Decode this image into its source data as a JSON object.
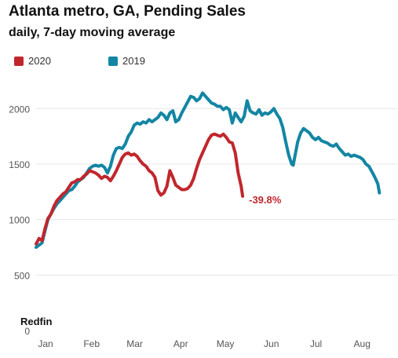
{
  "chart_data": {
    "type": "line",
    "title": "Atlanta metro, GA, Pending Sales",
    "subtitle": "daily, 7-day moving average",
    "xlabel": "",
    "ylabel": "",
    "ylim": [
      0,
      2200
    ],
    "yticks": [
      0,
      500,
      1000,
      1500,
      2000
    ],
    "xticks": [
      "Jan",
      "Feb",
      "Mar",
      "Apr",
      "May",
      "Jun",
      "Jul",
      "Aug"
    ],
    "xtick_days": [
      0,
      31,
      60,
      91,
      121,
      152,
      182,
      213
    ],
    "xlim": [
      0,
      243
    ],
    "grid": true,
    "legend_position": "top-left",
    "series": [
      {
        "name": "2020",
        "color": "#c0272d",
        "points": [
          [
            0,
            780
          ],
          [
            2,
            830
          ],
          [
            4,
            810
          ],
          [
            6,
            920
          ],
          [
            8,
            1010
          ],
          [
            10,
            1050
          ],
          [
            12,
            1120
          ],
          [
            14,
            1170
          ],
          [
            16,
            1200
          ],
          [
            18,
            1230
          ],
          [
            20,
            1250
          ],
          [
            22,
            1290
          ],
          [
            24,
            1330
          ],
          [
            26,
            1340
          ],
          [
            28,
            1360
          ],
          [
            30,
            1360
          ],
          [
            32,
            1390
          ],
          [
            34,
            1410
          ],
          [
            36,
            1440
          ],
          [
            38,
            1430
          ],
          [
            40,
            1420
          ],
          [
            42,
            1400
          ],
          [
            44,
            1370
          ],
          [
            46,
            1390
          ],
          [
            48,
            1380
          ],
          [
            50,
            1350
          ],
          [
            52,
            1390
          ],
          [
            54,
            1440
          ],
          [
            56,
            1500
          ],
          [
            58,
            1560
          ],
          [
            60,
            1590
          ],
          [
            62,
            1600
          ],
          [
            64,
            1580
          ],
          [
            66,
            1590
          ],
          [
            68,
            1570
          ],
          [
            70,
            1530
          ],
          [
            72,
            1500
          ],
          [
            74,
            1480
          ],
          [
            76,
            1440
          ],
          [
            78,
            1420
          ],
          [
            80,
            1380
          ],
          [
            82,
            1260
          ],
          [
            84,
            1220
          ],
          [
            86,
            1240
          ],
          [
            88,
            1300
          ],
          [
            90,
            1440
          ],
          [
            92,
            1380
          ],
          [
            94,
            1310
          ],
          [
            96,
            1290
          ],
          [
            98,
            1270
          ],
          [
            100,
            1270
          ],
          [
            102,
            1280
          ],
          [
            104,
            1310
          ],
          [
            106,
            1370
          ],
          [
            108,
            1460
          ],
          [
            110,
            1540
          ],
          [
            112,
            1600
          ],
          [
            114,
            1660
          ],
          [
            116,
            1720
          ],
          [
            118,
            1760
          ],
          [
            120,
            1770
          ],
          [
            122,
            1760
          ],
          [
            124,
            1750
          ],
          [
            126,
            1770
          ],
          [
            128,
            1740
          ],
          [
            130,
            1700
          ],
          [
            132,
            1690
          ],
          [
            134,
            1600
          ],
          [
            136,
            1420
          ],
          [
            138,
            1300
          ],
          [
            139,
            1210
          ]
        ],
        "end_label": "-39.8%"
      },
      {
        "name": "2019",
        "color": "#1386a4",
        "points": [
          [
            0,
            750
          ],
          [
            2,
            770
          ],
          [
            4,
            790
          ],
          [
            6,
            900
          ],
          [
            8,
            1000
          ],
          [
            10,
            1050
          ],
          [
            12,
            1100
          ],
          [
            14,
            1140
          ],
          [
            16,
            1170
          ],
          [
            18,
            1200
          ],
          [
            20,
            1230
          ],
          [
            22,
            1260
          ],
          [
            24,
            1270
          ],
          [
            26,
            1300
          ],
          [
            28,
            1340
          ],
          [
            30,
            1360
          ],
          [
            32,
            1380
          ],
          [
            34,
            1420
          ],
          [
            36,
            1460
          ],
          [
            38,
            1480
          ],
          [
            40,
            1490
          ],
          [
            42,
            1480
          ],
          [
            44,
            1490
          ],
          [
            46,
            1470
          ],
          [
            48,
            1420
          ],
          [
            50,
            1480
          ],
          [
            52,
            1580
          ],
          [
            54,
            1640
          ],
          [
            56,
            1650
          ],
          [
            58,
            1640
          ],
          [
            60,
            1680
          ],
          [
            62,
            1750
          ],
          [
            64,
            1790
          ],
          [
            66,
            1850
          ],
          [
            68,
            1870
          ],
          [
            70,
            1860
          ],
          [
            72,
            1880
          ],
          [
            74,
            1870
          ],
          [
            76,
            1900
          ],
          [
            78,
            1880
          ],
          [
            80,
            1900
          ],
          [
            82,
            1920
          ],
          [
            84,
            1960
          ],
          [
            86,
            1940
          ],
          [
            88,
            1900
          ],
          [
            90,
            1960
          ],
          [
            92,
            1980
          ],
          [
            94,
            1880
          ],
          [
            96,
            1900
          ],
          [
            98,
            1960
          ],
          [
            100,
            2010
          ],
          [
            102,
            2060
          ],
          [
            104,
            2110
          ],
          [
            106,
            2100
          ],
          [
            108,
            2070
          ],
          [
            110,
            2090
          ],
          [
            112,
            2140
          ],
          [
            114,
            2110
          ],
          [
            116,
            2080
          ],
          [
            118,
            2050
          ],
          [
            120,
            2040
          ],
          [
            122,
            2020
          ],
          [
            124,
            2020
          ],
          [
            126,
            1990
          ],
          [
            128,
            2010
          ],
          [
            130,
            1990
          ],
          [
            132,
            1870
          ],
          [
            134,
            1960
          ],
          [
            136,
            1920
          ],
          [
            138,
            1880
          ],
          [
            140,
            1930
          ],
          [
            142,
            2070
          ],
          [
            144,
            1980
          ],
          [
            146,
            1960
          ],
          [
            148,
            1950
          ],
          [
            150,
            1990
          ],
          [
            152,
            1940
          ],
          [
            154,
            1960
          ],
          [
            156,
            1950
          ],
          [
            158,
            1970
          ],
          [
            160,
            2000
          ],
          [
            162,
            1950
          ],
          [
            164,
            1910
          ],
          [
            166,
            1830
          ],
          [
            168,
            1700
          ],
          [
            170,
            1580
          ],
          [
            172,
            1500
          ],
          [
            173,
            1490
          ],
          [
            174,
            1560
          ],
          [
            176,
            1700
          ],
          [
            178,
            1780
          ],
          [
            180,
            1820
          ],
          [
            182,
            1800
          ],
          [
            184,
            1780
          ],
          [
            186,
            1740
          ],
          [
            188,
            1720
          ],
          [
            190,
            1740
          ],
          [
            192,
            1710
          ],
          [
            194,
            1700
          ],
          [
            196,
            1690
          ],
          [
            198,
            1670
          ],
          [
            200,
            1660
          ],
          [
            202,
            1680
          ],
          [
            204,
            1640
          ],
          [
            206,
            1610
          ],
          [
            208,
            1580
          ],
          [
            210,
            1590
          ],
          [
            212,
            1570
          ],
          [
            214,
            1580
          ],
          [
            216,
            1570
          ],
          [
            218,
            1560
          ],
          [
            220,
            1540
          ],
          [
            222,
            1500
          ],
          [
            224,
            1480
          ],
          [
            226,
            1430
          ],
          [
            228,
            1380
          ],
          [
            230,
            1320
          ],
          [
            231,
            1240
          ]
        ]
      }
    ],
    "source": "Redfin"
  },
  "colors": {
    "grid": "#e7e7e7",
    "axis_text": "#555555"
  }
}
